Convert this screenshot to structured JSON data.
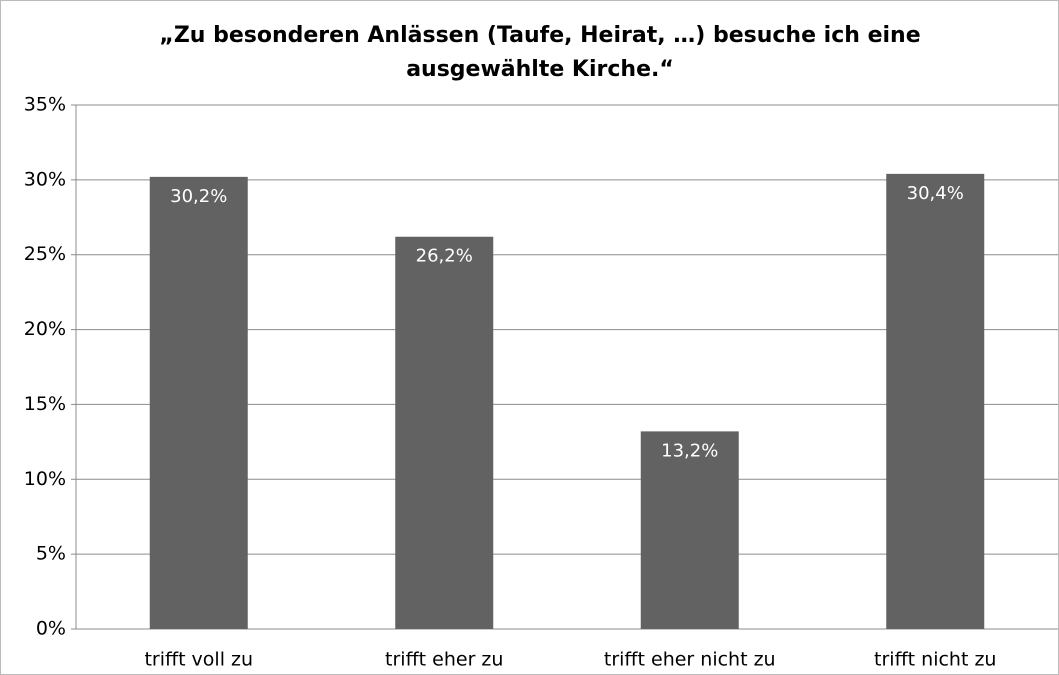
{
  "chart_data": {
    "type": "bar",
    "title": [
      "„Zu besonderen Anlässen (Taufe, Heirat, …) besuche ich eine",
      "ausgewählte Kirche.“"
    ],
    "categories": [
      "trifft voll zu",
      "trifft eher zu",
      "trifft eher nicht zu",
      "trifft nicht zu"
    ],
    "values": [
      30.2,
      26.2,
      13.2,
      30.4
    ],
    "value_labels": [
      "30,2%",
      "26,2%",
      "13,2%",
      "30,4%"
    ],
    "color": "#626262",
    "ylim": [
      0,
      35
    ],
    "yticks": [
      {
        "value": 0,
        "label": "0%"
      },
      {
        "value": 5,
        "label": "5%"
      },
      {
        "value": 10,
        "label": "10%"
      },
      {
        "value": 15,
        "label": "15%"
      },
      {
        "value": 20,
        "label": "20%"
      },
      {
        "value": 25,
        "label": "25%"
      },
      {
        "value": 30,
        "label": "30%"
      },
      {
        "value": 35,
        "label": "35%"
      }
    ],
    "grid": true
  }
}
